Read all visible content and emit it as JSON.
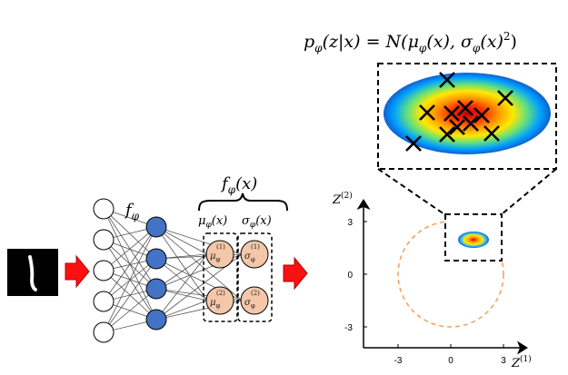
{
  "equation": {
    "lhs": "p",
    "lhs_sub": "φ",
    "lhs_args": "(z|x) = N(μ",
    "mu_sub": "φ",
    "mid": "(x), σ",
    "sigma_sub": "φ",
    "tail": "(x)",
    "tail_sup": "2",
    "close": ")"
  },
  "encoder": {
    "label": "f",
    "label_sub": "φ",
    "output_label": "f",
    "output_label_sub": "φ",
    "output_label_args": "(x)",
    "mu_group_label": "μ",
    "mu_group_sub": "φ",
    "mu_group_args": "(x)",
    "sigma_group_label": "σ",
    "sigma_group_sub": "φ",
    "sigma_group_args": "(x)",
    "mu_nodes": [
      {
        "symbol": "μ",
        "sub": "φ",
        "sup": "(1)"
      },
      {
        "symbol": "μ",
        "sub": "φ",
        "sup": "(2)"
      }
    ],
    "sigma_nodes": [
      {
        "symbol": "σ",
        "sub": "φ",
        "sup": "(1)"
      },
      {
        "symbol": "σ",
        "sub": "φ",
        "sup": "(2)"
      }
    ]
  },
  "latent_plot": {
    "y_axis_label": "Z",
    "y_axis_sup": "(2)",
    "x_axis_label": "Z",
    "x_axis_sup": "(1)",
    "x_ticks": [
      "-3",
      "0",
      "3"
    ],
    "y_ticks": [
      "3",
      "0",
      "-3"
    ]
  },
  "colors": {
    "hidden_node": "#4472c4",
    "output_node": "#f4c7a9",
    "arrow": "#ff0000",
    "prior_circle": "#f0a060",
    "connections": "#555555"
  },
  "icons": {
    "input_image": "handwritten-digit-one",
    "arrow": "right-arrow-icon"
  }
}
